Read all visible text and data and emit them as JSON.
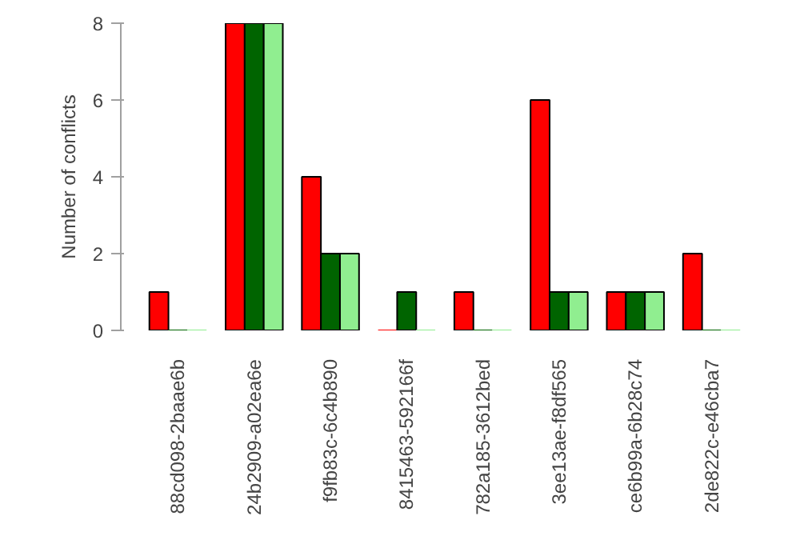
{
  "chart_data": {
    "type": "bar",
    "ylabel": "Number of conflicts",
    "categories": [
      "88cd098-2baae6b",
      "24b2909-a02ea6e",
      "f9fb83c-6c4b890",
      "8415463-592166f",
      "782a185-3612bed",
      "3ee13ae-f8df565",
      "ce6b99a-6b28c74",
      "2de822c-e46cba7"
    ],
    "series": [
      {
        "color": "#ff0000",
        "values": [
          1,
          8,
          4,
          0,
          1,
          6,
          1,
          2
        ]
      },
      {
        "color": "#006400",
        "values": [
          0,
          8,
          2,
          1,
          0,
          1,
          1,
          0
        ]
      },
      {
        "color": "#90ee90",
        "values": [
          0,
          8,
          2,
          0,
          0,
          1,
          1,
          0
        ]
      }
    ],
    "ylim": [
      0,
      8
    ],
    "yticks": [
      0,
      2,
      4,
      6,
      8
    ],
    "grid": false
  }
}
